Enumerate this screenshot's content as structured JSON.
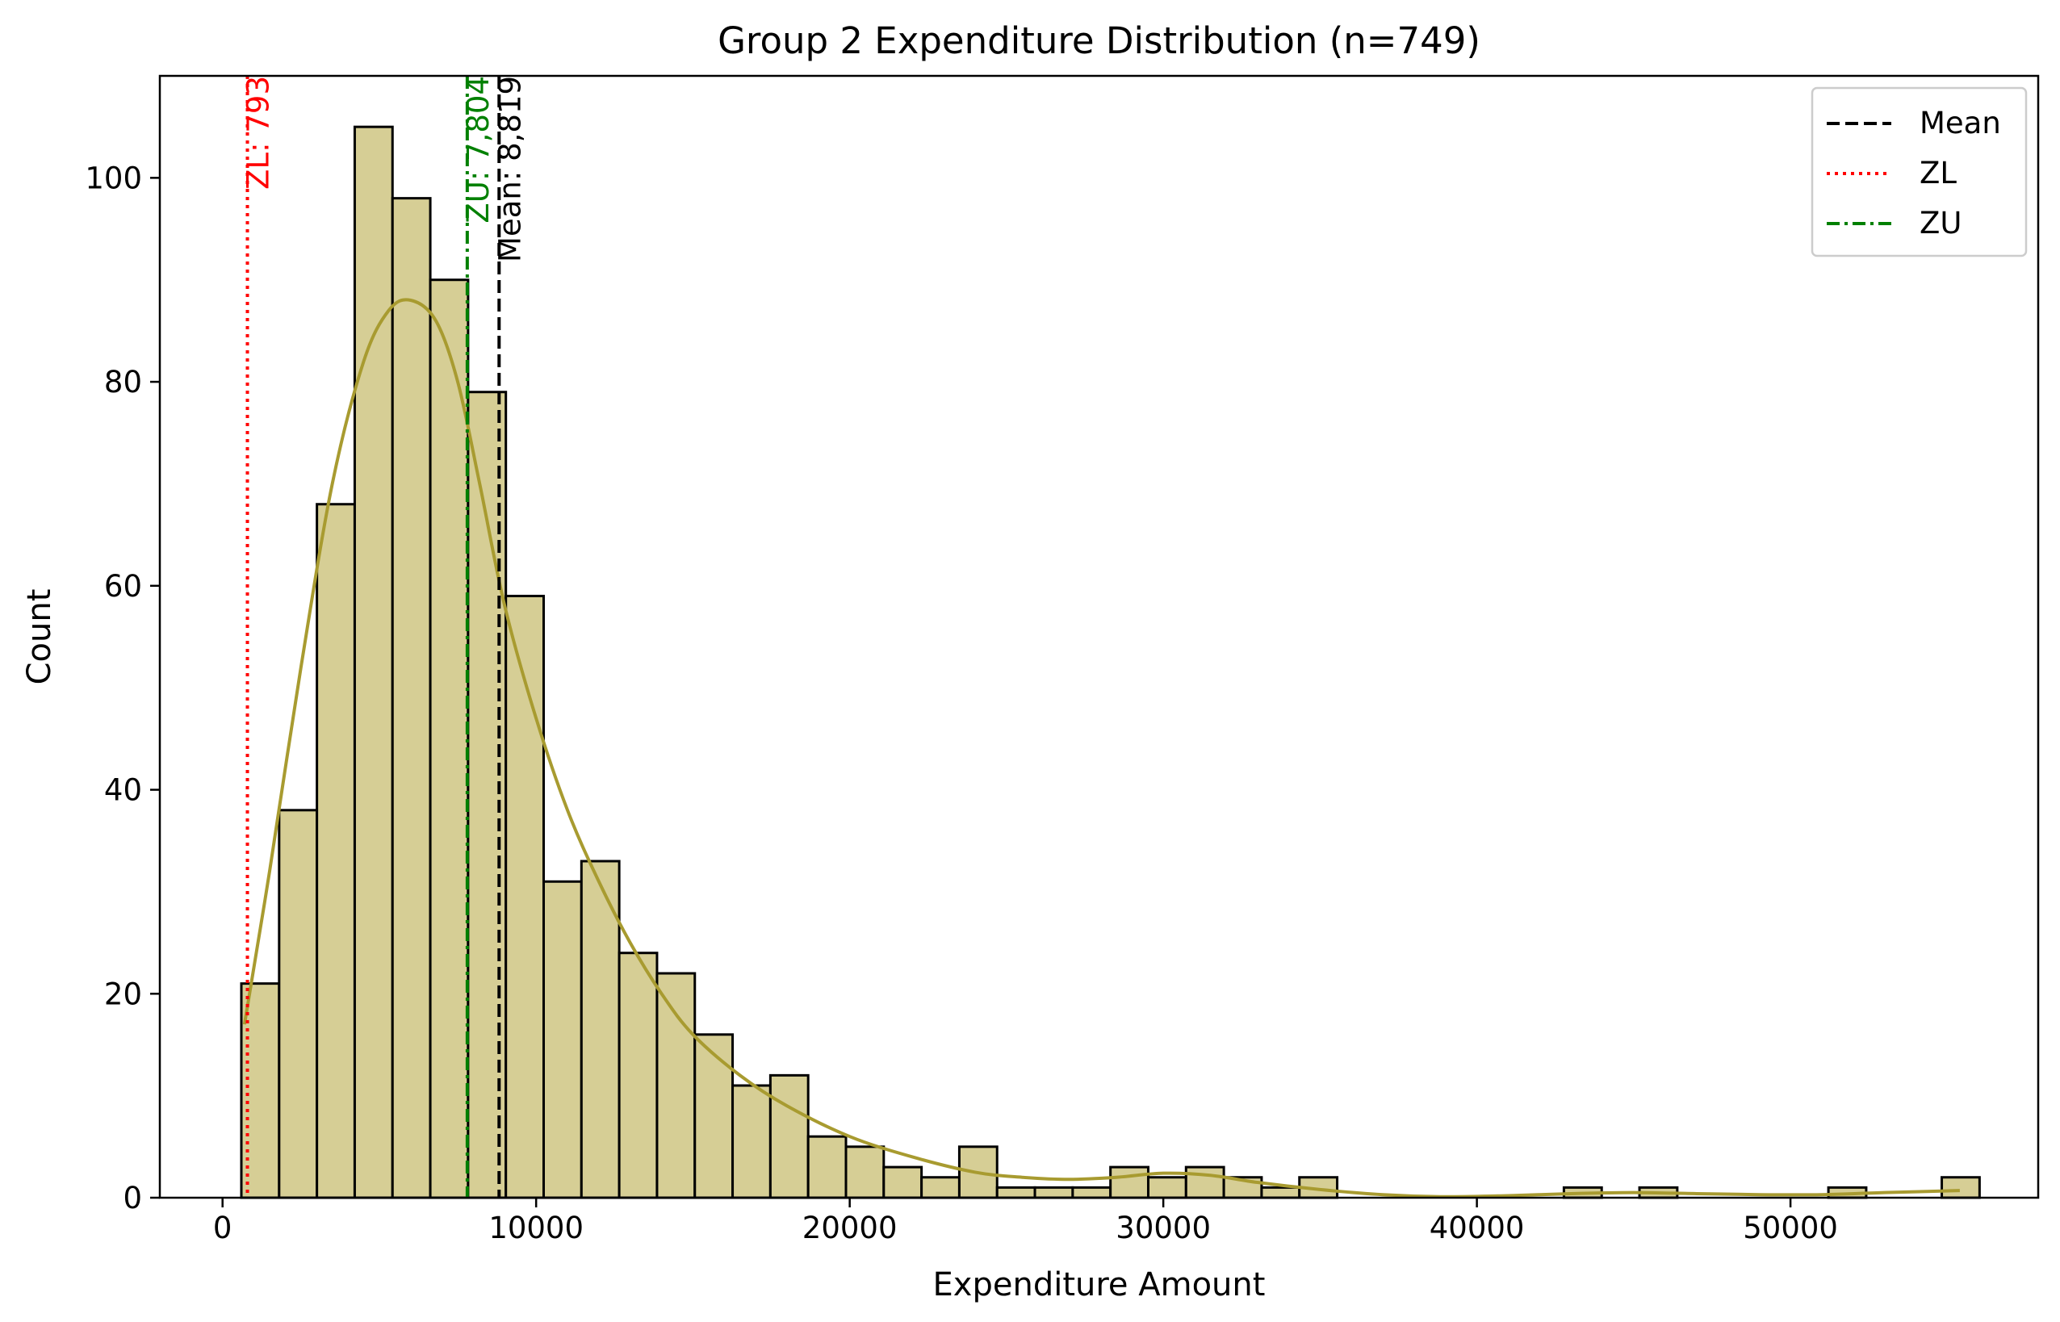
{
  "chart_data": {
    "type": "bar",
    "title": "Group 2 Expenditure Distribution (n=749)",
    "xlabel": "Expenditure Amount",
    "ylabel": "Count",
    "xlim": [
      -2000,
      57900
    ],
    "ylim": [
      0,
      110
    ],
    "x_ticks": [
      0,
      10000,
      20000,
      30000,
      40000,
      50000
    ],
    "x_tick_labels": [
      "0",
      "10000",
      "20000",
      "30000",
      "40000",
      "50000"
    ],
    "y_ticks": [
      0,
      20,
      40,
      60,
      80,
      100
    ],
    "y_tick_labels": [
      "0",
      "20",
      "40",
      "60",
      "80",
      "100"
    ],
    "bin_start": 600,
    "bin_width": 1205,
    "counts": [
      21,
      38,
      68,
      105,
      98,
      90,
      79,
      59,
      31,
      33,
      24,
      22,
      16,
      11,
      12,
      6,
      5,
      3,
      2,
      5,
      1,
      1,
      1,
      3,
      2,
      3,
      2,
      1,
      2,
      0,
      0,
      0,
      0,
      0,
      0,
      1,
      0,
      1,
      0,
      0,
      0,
      0,
      1,
      0,
      0,
      2
    ],
    "bar_fill": "#d6ce95",
    "bar_edge": "#000000",
    "kde_color": "#a89b30",
    "kde": {
      "x": [
        700,
        1500,
        2500,
        3500,
        4500,
        5300,
        6000,
        6800,
        7500,
        8200,
        9000,
        10000,
        11000,
        12000,
        13000,
        14000,
        15000,
        16500,
        18000,
        20000,
        22000,
        24000,
        25500,
        27000,
        28500,
        30000,
        31500,
        33000,
        35000,
        37000,
        39000,
        41000,
        43000,
        45000,
        47000,
        49000,
        51000,
        53000,
        55400
      ],
      "y": [
        17,
        32,
        52,
        70,
        82,
        87,
        88,
        86,
        80,
        70,
        58,
        47,
        38,
        31,
        25,
        20,
        16,
        12,
        9,
        6,
        4,
        2.5,
        2,
        1.8,
        2,
        2.4,
        2.2,
        1.5,
        0.8,
        0.3,
        0.1,
        0.2,
        0.4,
        0.5,
        0.4,
        0.3,
        0.3,
        0.5,
        0.7
      ]
    },
    "reference_lines": [
      {
        "legend": "Mean",
        "x": 8819,
        "label": "Mean: 8,819",
        "color": "#000000",
        "style": "dashed"
      },
      {
        "legend": "ZL",
        "x": 793,
        "label": "ZL: 793",
        "color": "#ff0000",
        "style": "dotted"
      },
      {
        "legend": "ZU",
        "x": 7804,
        "label": "ZU: 7,804",
        "color": "#008000",
        "style": "dashdot"
      }
    ],
    "legend_position": "top-right",
    "grid": false
  }
}
